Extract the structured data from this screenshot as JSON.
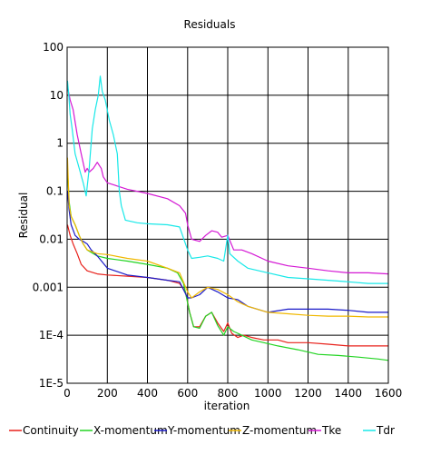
{
  "chart_data": {
    "type": "line",
    "title": "Residuals",
    "xlabel": "iteration",
    "ylabel": "Residual",
    "yscale": "log",
    "xlim": [
      0,
      1600
    ],
    "ylim": [
      1e-05,
      100
    ],
    "grid": true,
    "legend_placement": "bottom",
    "x_ticks": [
      0,
      200,
      400,
      600,
      800,
      1000,
      1200,
      1400,
      1600
    ],
    "x_tick_labels": [
      "0",
      "200",
      "400",
      "600",
      "800",
      "1000",
      "1200",
      "1400",
      "1600"
    ],
    "y_ticks": [
      1e-05,
      0.0001,
      0.001,
      0.01,
      0.1,
      1,
      10,
      100
    ],
    "y_tick_labels": [
      "1E-5",
      "1E-4",
      "0.001",
      "0.01",
      "0.1",
      "1",
      "10",
      "100"
    ],
    "series": [
      {
        "name": "Continuity",
        "color": "#e8201a",
        "points": [
          [
            2,
            0.02
          ],
          [
            15,
            0.012
          ],
          [
            30,
            0.008
          ],
          [
            50,
            0.005
          ],
          [
            70,
            0.003
          ],
          [
            100,
            0.0022
          ],
          [
            150,
            0.0019
          ],
          [
            200,
            0.0018
          ],
          [
            300,
            0.0017
          ],
          [
            400,
            0.0016
          ],
          [
            500,
            0.0014
          ],
          [
            560,
            0.0012
          ],
          [
            590,
            0.0008
          ],
          [
            610,
            0.0003
          ],
          [
            630,
            0.00015
          ],
          [
            660,
            0.00015
          ],
          [
            690,
            0.00025
          ],
          [
            720,
            0.0003
          ],
          [
            750,
            0.00018
          ],
          [
            780,
            0.00012
          ],
          [
            800,
            0.00018
          ],
          [
            820,
            0.00011
          ],
          [
            850,
            9e-05
          ],
          [
            880,
            0.0001
          ],
          [
            920,
            9e-05
          ],
          [
            980,
            8e-05
          ],
          [
            1050,
            8e-05
          ],
          [
            1100,
            7e-05
          ],
          [
            1200,
            7e-05
          ],
          [
            1300,
            6.5e-05
          ],
          [
            1400,
            6e-05
          ],
          [
            1500,
            6e-05
          ],
          [
            1600,
            6e-05
          ]
        ]
      },
      {
        "name": "X-momentum",
        "color": "#22d422",
        "points": [
          [
            2,
            0.3
          ],
          [
            10,
            0.06
          ],
          [
            20,
            0.03
          ],
          [
            40,
            0.02
          ],
          [
            60,
            0.012
          ],
          [
            80,
            0.008
          ],
          [
            100,
            0.006
          ],
          [
            150,
            0.0045
          ],
          [
            200,
            0.004
          ],
          [
            300,
            0.0035
          ],
          [
            400,
            0.003
          ],
          [
            500,
            0.0025
          ],
          [
            550,
            0.002
          ],
          [
            580,
            0.0012
          ],
          [
            610,
            0.0003
          ],
          [
            630,
            0.00015
          ],
          [
            660,
            0.00014
          ],
          [
            690,
            0.00025
          ],
          [
            720,
            0.0003
          ],
          [
            750,
            0.00016
          ],
          [
            780,
            0.0001
          ],
          [
            800,
            0.00015
          ],
          [
            830,
            0.00012
          ],
          [
            870,
            0.0001
          ],
          [
            920,
            8e-05
          ],
          [
            980,
            7e-05
          ],
          [
            1050,
            6e-05
          ],
          [
            1150,
            5e-05
          ],
          [
            1250,
            4e-05
          ],
          [
            1350,
            3.8e-05
          ],
          [
            1450,
            3.5e-05
          ],
          [
            1550,
            3.2e-05
          ],
          [
            1600,
            3e-05
          ]
        ]
      },
      {
        "name": "Y-momentum",
        "color": "#1a1ac8",
        "points": [
          [
            2,
            0.1
          ],
          [
            10,
            0.04
          ],
          [
            20,
            0.02
          ],
          [
            40,
            0.012
          ],
          [
            60,
            0.01
          ],
          [
            80,
            0.009
          ],
          [
            100,
            0.008
          ],
          [
            120,
            0.006
          ],
          [
            150,
            0.0045
          ],
          [
            200,
            0.0025
          ],
          [
            300,
            0.0018
          ],
          [
            400,
            0.0016
          ],
          [
            500,
            0.0014
          ],
          [
            560,
            0.0013
          ],
          [
            600,
            0.0006
          ],
          [
            620,
            0.0006
          ],
          [
            660,
            0.0007
          ],
          [
            700,
            0.001
          ],
          [
            750,
            0.0008
          ],
          [
            800,
            0.0006
          ],
          [
            850,
            0.00055
          ],
          [
            900,
            0.0004
          ],
          [
            1000,
            0.0003
          ],
          [
            1100,
            0.00035
          ],
          [
            1200,
            0.00035
          ],
          [
            1300,
            0.00035
          ],
          [
            1400,
            0.00033
          ],
          [
            1500,
            0.0003
          ],
          [
            1600,
            0.0003
          ]
        ]
      },
      {
        "name": "Z-momentum",
        "color": "#f0b800",
        "points": [
          [
            2,
            0.5
          ],
          [
            10,
            0.05
          ],
          [
            20,
            0.03
          ],
          [
            40,
            0.02
          ],
          [
            60,
            0.012
          ],
          [
            80,
            0.008
          ],
          [
            100,
            0.006
          ],
          [
            150,
            0.005
          ],
          [
            200,
            0.0048
          ],
          [
            300,
            0.004
          ],
          [
            400,
            0.0035
          ],
          [
            500,
            0.0025
          ],
          [
            560,
            0.002
          ],
          [
            600,
            0.0008
          ],
          [
            620,
            0.0006
          ],
          [
            660,
            0.0008
          ],
          [
            700,
            0.001
          ],
          [
            750,
            0.0009
          ],
          [
            800,
            0.0007
          ],
          [
            850,
            0.0005
          ],
          [
            900,
            0.0004
          ],
          [
            1000,
            0.0003
          ],
          [
            1100,
            0.00028
          ],
          [
            1200,
            0.00026
          ],
          [
            1300,
            0.00025
          ],
          [
            1400,
            0.00025
          ],
          [
            1500,
            0.00024
          ],
          [
            1600,
            0.00024
          ]
        ]
      },
      {
        "name": "Tke",
        "color": "#d418d4",
        "points": [
          [
            2,
            15
          ],
          [
            15,
            8
          ],
          [
            30,
            5
          ],
          [
            50,
            1.5
          ],
          [
            70,
            0.6
          ],
          [
            90,
            0.25
          ],
          [
            100,
            0.3
          ],
          [
            110,
            0.25
          ],
          [
            130,
            0.3
          ],
          [
            150,
            0.4
          ],
          [
            170,
            0.3
          ],
          [
            180,
            0.2
          ],
          [
            200,
            0.15
          ],
          [
            300,
            0.11
          ],
          [
            400,
            0.09
          ],
          [
            500,
            0.07
          ],
          [
            560,
            0.05
          ],
          [
            590,
            0.035
          ],
          [
            600,
            0.02
          ],
          [
            620,
            0.01
          ],
          [
            660,
            0.009
          ],
          [
            690,
            0.012
          ],
          [
            720,
            0.015
          ],
          [
            750,
            0.014
          ],
          [
            770,
            0.011
          ],
          [
            800,
            0.012
          ],
          [
            830,
            0.006
          ],
          [
            870,
            0.006
          ],
          [
            920,
            0.005
          ],
          [
            1000,
            0.0035
          ],
          [
            1100,
            0.0028
          ],
          [
            1200,
            0.0025
          ],
          [
            1300,
            0.0022
          ],
          [
            1400,
            0.002
          ],
          [
            1500,
            0.002
          ],
          [
            1600,
            0.0019
          ]
        ]
      },
      {
        "name": "Tdr",
        "color": "#18e8e8",
        "points": [
          [
            2,
            20
          ],
          [
            8,
            10
          ],
          [
            15,
            4
          ],
          [
            25,
            2
          ],
          [
            40,
            0.6
          ],
          [
            60,
            0.3
          ],
          [
            80,
            0.15
          ],
          [
            95,
            0.08
          ],
          [
            110,
            0.3
          ],
          [
            125,
            2
          ],
          [
            140,
            5
          ],
          [
            155,
            10
          ],
          [
            165,
            25
          ],
          [
            175,
            12
          ],
          [
            190,
            8
          ],
          [
            210,
            3
          ],
          [
            230,
            1.5
          ],
          [
            250,
            0.6
          ],
          [
            260,
            0.1
          ],
          [
            270,
            0.05
          ],
          [
            290,
            0.025
          ],
          [
            350,
            0.022
          ],
          [
            400,
            0.021
          ],
          [
            500,
            0.02
          ],
          [
            560,
            0.018
          ],
          [
            600,
            0.006
          ],
          [
            620,
            0.004
          ],
          [
            660,
            0.0042
          ],
          [
            700,
            0.0045
          ],
          [
            750,
            0.004
          ],
          [
            780,
            0.0035
          ],
          [
            800,
            0.012
          ],
          [
            810,
            0.005
          ],
          [
            850,
            0.0035
          ],
          [
            900,
            0.0025
          ],
          [
            1000,
            0.002
          ],
          [
            1100,
            0.0016
          ],
          [
            1200,
            0.0015
          ],
          [
            1300,
            0.0014
          ],
          [
            1400,
            0.0013
          ],
          [
            1500,
            0.0012
          ],
          [
            1600,
            0.0012
          ]
        ]
      }
    ]
  }
}
